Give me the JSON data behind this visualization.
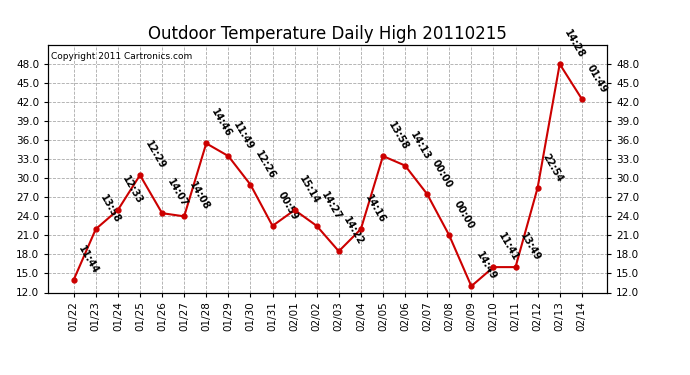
{
  "title": "Outdoor Temperature Daily High 20110215",
  "copyright": "Copyright 2011 Cartronics.com",
  "dates": [
    "01/22",
    "01/23",
    "01/24",
    "01/25",
    "01/26",
    "01/27",
    "01/28",
    "01/29",
    "01/30",
    "01/31",
    "02/01",
    "02/02",
    "02/03",
    "02/04",
    "02/05",
    "02/06",
    "02/07",
    "02/08",
    "02/09",
    "02/10",
    "02/11",
    "02/12",
    "02/13",
    "02/14"
  ],
  "values": [
    14.0,
    22.0,
    25.0,
    30.5,
    24.5,
    24.0,
    35.5,
    33.5,
    29.0,
    22.5,
    25.0,
    22.5,
    18.5,
    22.0,
    33.5,
    32.0,
    27.5,
    21.0,
    13.0,
    16.0,
    16.0,
    28.5,
    48.0,
    42.5
  ],
  "times": [
    "11:44",
    "13:58",
    "12:33",
    "12:29",
    "14:07",
    "14:08",
    "14:46",
    "11:49",
    "12:26",
    "00:59",
    "15:14",
    "14:27",
    "14:22",
    "14:16",
    "13:58",
    "14:13",
    "00:00",
    "00:00",
    "14:49",
    "11:41",
    "13:49",
    "22:54",
    "14:28",
    "01:49"
  ],
  "line_color": "#cc0000",
  "marker_color": "#cc0000",
  "bg_color": "#ffffff",
  "grid_color": "#aaaaaa",
  "ylim_min": 12.0,
  "ylim_max": 51.0,
  "yticks": [
    12.0,
    15.0,
    18.0,
    21.0,
    24.0,
    27.0,
    30.0,
    33.0,
    36.0,
    39.0,
    42.0,
    45.0,
    48.0
  ],
  "title_fontsize": 12,
  "label_fontsize": 7,
  "tick_fontsize": 7.5,
  "copyright_fontsize": 6.5
}
